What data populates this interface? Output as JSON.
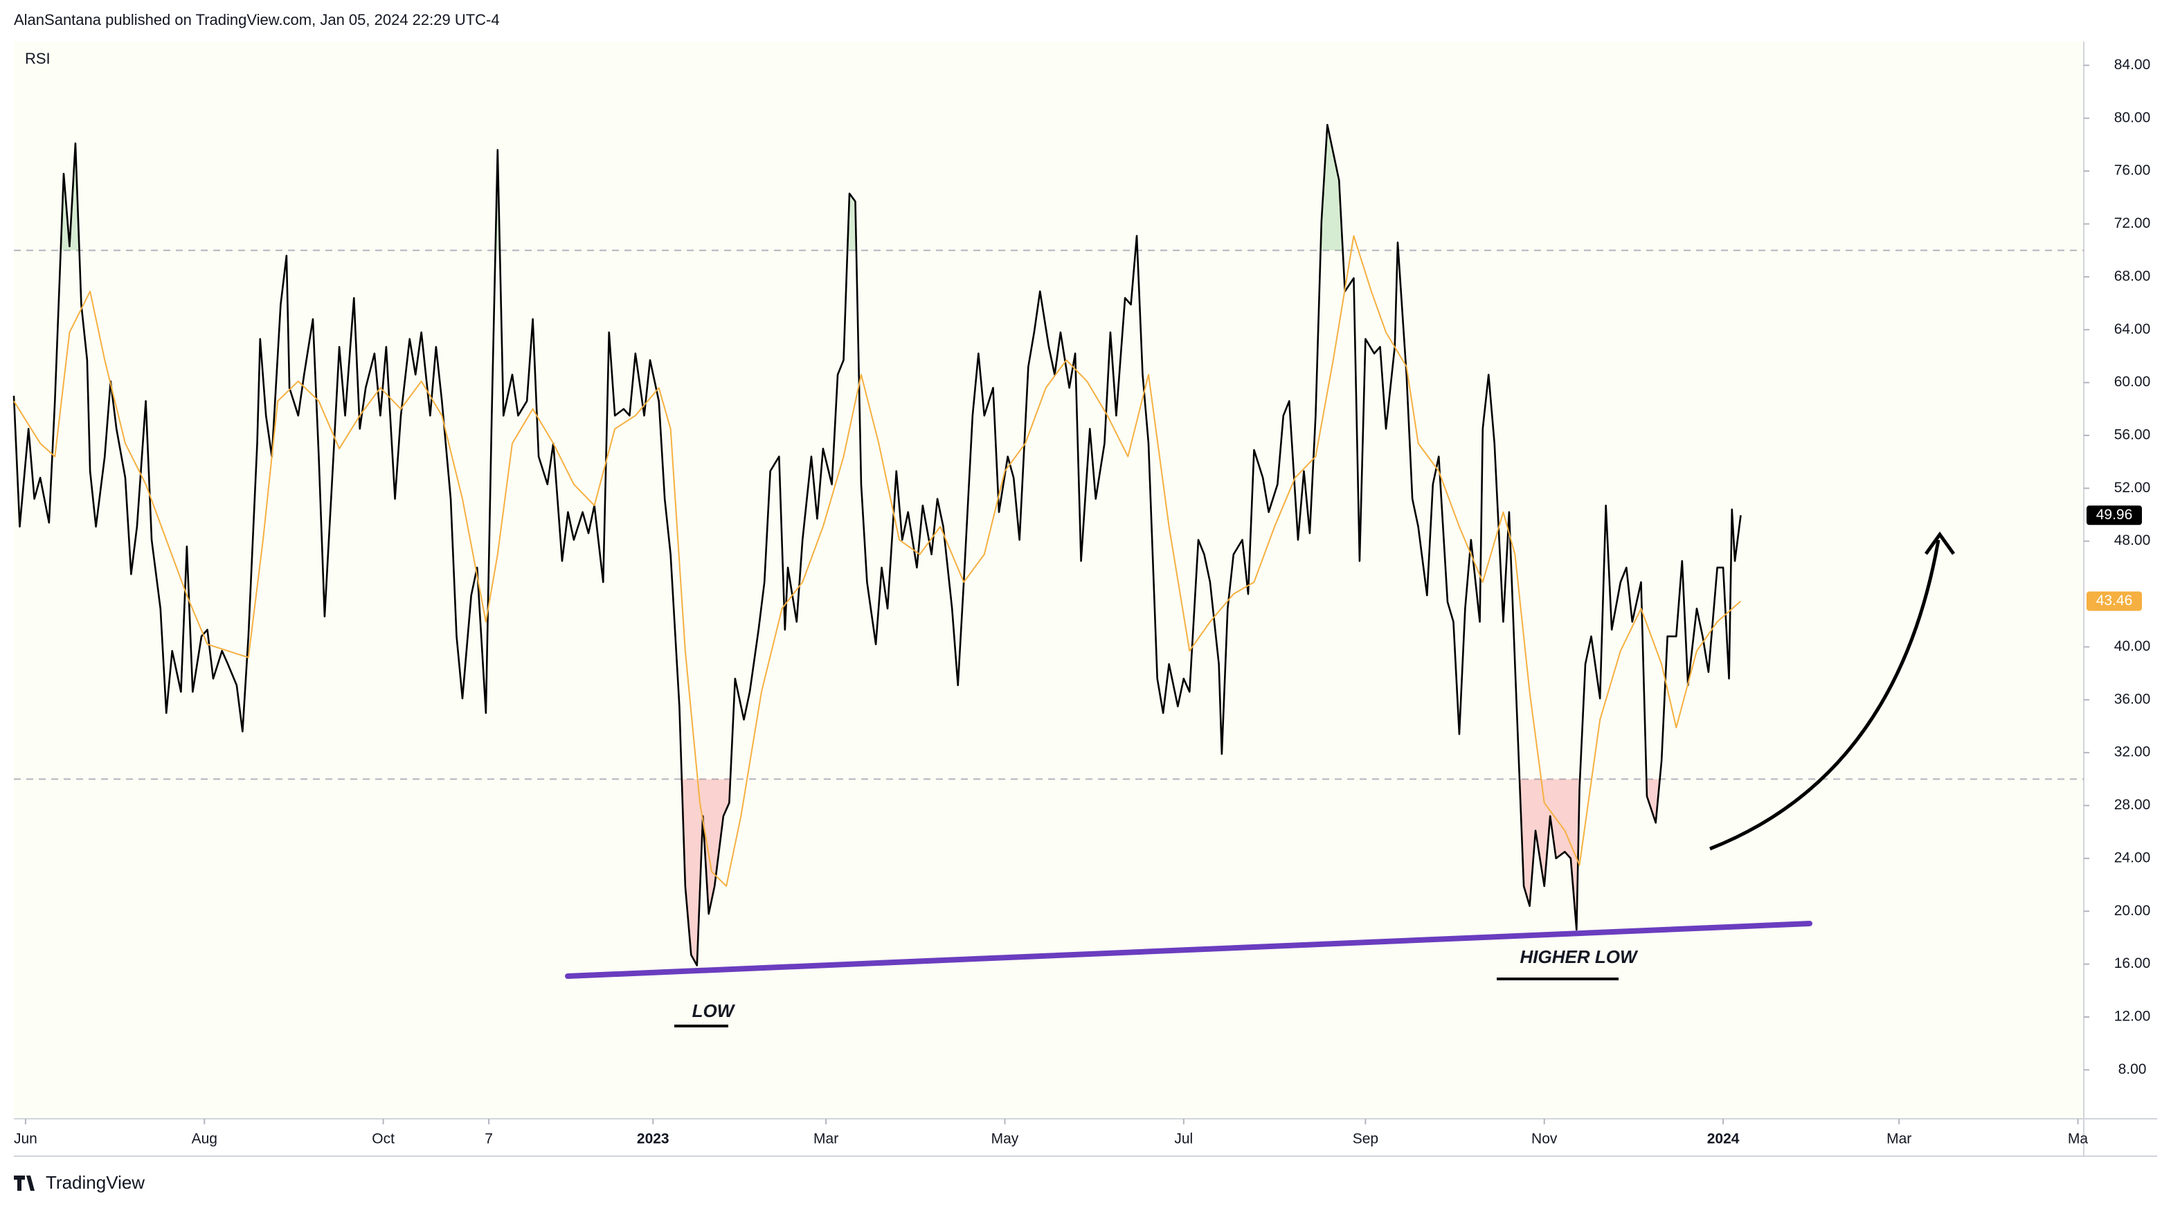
{
  "header": "AlanSantana published on TradingView.com, Jan 05, 2024 22:29 UTC-4",
  "footer": "TradingView",
  "chart_data": {
    "type": "line",
    "xlim": [
      -4,
      702
    ],
    "xticks": [
      {
        "value": 0,
        "label": "Jun"
      },
      {
        "value": 61,
        "label": "Aug"
      },
      {
        "value": 122,
        "label": "Oct"
      },
      {
        "value": 158,
        "label": "7"
      },
      {
        "value": 214,
        "label": "2023"
      },
      {
        "value": 273,
        "label": "Mar"
      },
      {
        "value": 334,
        "label": "May"
      },
      {
        "value": 395,
        "label": "Jul"
      },
      {
        "value": 457,
        "label": "Sep"
      },
      {
        "value": 518,
        "label": "Nov"
      },
      {
        "value": 579,
        "label": "2024"
      },
      {
        "value": 639,
        "label": "Mar"
      },
      {
        "value": 700,
        "label": "Ma"
      }
    ],
    "ylim": [
      4.3,
      85.8
    ],
    "yticks": [
      {
        "value": 8,
        "label": "8.00"
      },
      {
        "value": 12,
        "label": "12.00"
      },
      {
        "value": 16,
        "label": "16.00"
      },
      {
        "value": 20,
        "label": "20.00"
      },
      {
        "value": 24,
        "label": "24.00"
      },
      {
        "value": 28,
        "label": "28.00"
      },
      {
        "value": 32,
        "label": "32.00"
      },
      {
        "value": 36,
        "label": "36.00"
      },
      {
        "value": 40,
        "label": "40.00"
      },
      {
        "value": 48,
        "label": "48.00"
      },
      {
        "value": 52,
        "label": "52.00"
      },
      {
        "value": 56,
        "label": "56.00"
      },
      {
        "value": 60,
        "label": "60.00"
      },
      {
        "value": 64,
        "label": "64.00"
      },
      {
        "value": 68,
        "label": "68.00"
      },
      {
        "value": 72,
        "label": "72.00"
      },
      {
        "value": 76,
        "label": "76.00"
      },
      {
        "value": 80,
        "label": "80.00"
      },
      {
        "value": 84,
        "label": "84.00"
      }
    ],
    "hlines": [
      70,
      30
    ],
    "annotations": [
      "LOW",
      "HIGHER LOW"
    ],
    "series": [
      {
        "name": "RSI",
        "color": "#000000",
        "x": [
          -4,
          -2,
          1,
          3,
          5,
          8,
          10,
          13,
          15,
          17,
          19,
          21,
          22,
          24,
          27,
          29,
          31,
          34,
          36,
          38,
          41,
          43,
          46,
          48,
          50,
          53,
          55,
          57,
          60,
          62,
          64,
          67,
          69,
          72,
          74,
          76,
          79,
          80,
          82,
          84,
          87,
          89,
          90,
          93,
          95,
          98,
          100,
          102,
          105,
          107,
          109,
          112,
          114,
          116,
          119,
          121,
          123,
          126,
          128,
          131,
          133,
          135,
          138,
          140,
          142,
          145,
          147,
          149,
          152,
          154,
          157,
          159,
          161,
          163,
          166,
          168,
          171,
          173,
          175,
          178,
          180,
          183,
          185,
          187,
          190,
          192,
          194,
          197,
          199,
          201,
          204,
          206,
          208,
          211,
          213,
          216,
          218,
          220,
          223,
          225,
          227,
          229,
          231,
          233,
          235,
          238,
          240,
          242,
          245,
          247,
          250,
          252,
          254,
          257,
          259,
          260,
          263,
          265,
          268,
          270,
          272,
          275,
          277,
          279,
          281,
          283,
          285,
          287,
          290,
          292,
          294,
          297,
          299,
          301,
          304,
          306,
          309,
          311,
          313,
          316,
          318,
          320,
          323,
          325,
          327,
          330,
          332,
          335,
          337,
          339,
          342,
          344,
          346,
          349,
          351,
          353,
          356,
          358,
          360,
          363,
          365,
          368,
          370,
          372,
          375,
          377,
          379,
          381,
          383,
          386,
          388,
          390,
          393,
          395,
          397,
          400,
          402,
          404,
          407,
          408,
          410,
          412,
          415,
          417,
          419,
          422,
          424,
          427,
          429,
          431,
          434,
          436,
          438,
          440,
          442,
          444,
          446,
          448,
          450,
          453,
          455,
          457,
          460,
          462,
          464,
          467,
          468,
          471,
          473,
          475,
          478,
          480,
          482,
          485,
          487,
          489,
          491,
          493,
          496,
          497,
          499,
          501,
          504,
          506,
          508,
          511,
          513,
          515,
          518,
          520,
          522,
          525,
          527,
          529,
          530,
          532,
          534,
          537,
          539,
          541,
          544,
          546,
          548,
          551,
          553,
          556,
          558,
          560,
          563,
          565,
          567,
          570,
          572,
          574,
          577,
          579,
          581,
          582,
          583,
          585
        ],
        "values": [
          59,
          49.1,
          56.5,
          51.2,
          52.8,
          49.4,
          58.6,
          75.8,
          70.3,
          78.1,
          65.9,
          61.7,
          53.3,
          49.1,
          54.4,
          60.1,
          56.5,
          52.8,
          45.5,
          49.1,
          58.6,
          48.1,
          42.9,
          35,
          39.7,
          36.6,
          47.6,
          36.6,
          40.8,
          41.3,
          37.6,
          39.7,
          38.7,
          37.1,
          33.6,
          40.8,
          55.4,
          63.3,
          57.5,
          54.4,
          65.9,
          69.6,
          59.6,
          57.5,
          60.6,
          64.8,
          54.4,
          42.3,
          54.4,
          62.7,
          57.5,
          66.4,
          56.5,
          59.6,
          62.2,
          57.5,
          62.7,
          51.2,
          57.5,
          63.3,
          60.6,
          63.8,
          57.5,
          62.7,
          58.6,
          51.2,
          40.8,
          36.1,
          43.9,
          46,
          35,
          57.5,
          77.6,
          57.5,
          60.6,
          57.5,
          58.6,
          64.8,
          54.4,
          52.3,
          55.4,
          46.5,
          50.2,
          48.1,
          50.2,
          48.6,
          50.7,
          44.9,
          63.8,
          57.5,
          58,
          57.5,
          62.2,
          57.5,
          61.7,
          58.6,
          51.2,
          47,
          35.5,
          21.9,
          16.7,
          15.9,
          27.2,
          19.8,
          21.9,
          27.2,
          28.2,
          37.6,
          34.5,
          36.6,
          41.3,
          44.9,
          53.3,
          54.4,
          41.3,
          46,
          41.9,
          48.1,
          54.4,
          49.7,
          55,
          52.3,
          60.6,
          61.7,
          74.3,
          73.7,
          52.3,
          44.9,
          40.2,
          46,
          42.9,
          53.3,
          48.1,
          50.2,
          46,
          50.7,
          47,
          51.2,
          49.1,
          42.9,
          37.1,
          44.9,
          57.5,
          62.2,
          57.5,
          59.6,
          50.2,
          54.4,
          52.8,
          48.1,
          61.2,
          63.8,
          66.9,
          62.7,
          60.6,
          63.8,
          59.6,
          62.2,
          46.5,
          56.5,
          51.2,
          55.4,
          63.8,
          57.5,
          66.4,
          65.9,
          71.1,
          60.6,
          55.4,
          37.6,
          35,
          38.7,
          35.5,
          37.6,
          36.6,
          48.1,
          47,
          44.9,
          38.7,
          31.9,
          42.9,
          47,
          48.1,
          44,
          54.9,
          52.8,
          50.2,
          52.3,
          57.5,
          58.6,
          48.1,
          53.3,
          48.6,
          57.5,
          72.2,
          79.5,
          77.4,
          75.3,
          66.9,
          67.9,
          46.5,
          63.3,
          62.2,
          62.7,
          56.5,
          62.7,
          70.6,
          60.6,
          51.2,
          49.1,
          43.9,
          52.3,
          54.4,
          43.4,
          41.9,
          33.4,
          42.9,
          48.1,
          41.9,
          56.5,
          60.6,
          55.4,
          41.9,
          50.2,
          38.7,
          21.9,
          20.4,
          26.1,
          21.9,
          27.2,
          24,
          24.5,
          24,
          18.6,
          29.3,
          38.7,
          40.8,
          36.1,
          50.7,
          41.3,
          44.9,
          46,
          41.9,
          44.9,
          28.7,
          26.7,
          31.4,
          40.8,
          40.8,
          46.5,
          37.1,
          42.9,
          40.8,
          38.1,
          46,
          46,
          37.6,
          50.4,
          46.5,
          49.96
        ]
      },
      {
        "color": "#f5b041",
        "x": [
          -4,
          5,
          10,
          15,
          22,
          27,
          34,
          41,
          48,
          55,
          62,
          69,
          76,
          81,
          86,
          93,
          100,
          107,
          114,
          121,
          128,
          135,
          142,
          149,
          157,
          161,
          166,
          173,
          180,
          187,
          194,
          201,
          208,
          216,
          220,
          225,
          230,
          234,
          239,
          244,
          251,
          258,
          265,
          272,
          279,
          285,
          291,
          298,
          305,
          312,
          320,
          327,
          334,
          341,
          348,
          355,
          362,
          369,
          376,
          383,
          390,
          397,
          404,
          412,
          419,
          426,
          433,
          440,
          446,
          453,
          459,
          464,
          471,
          475,
          482,
          489,
          497,
          504,
          508,
          513,
          518,
          525,
          530,
          537,
          544,
          551,
          558,
          563,
          570,
          577,
          585
        ],
        "values": [
          58.6,
          55.4,
          54.4,
          63.8,
          66.9,
          61.7,
          55.4,
          52.3,
          48.1,
          43.9,
          40.2,
          39.7,
          39.2,
          48.1,
          58.6,
          60.1,
          58.6,
          55,
          57.5,
          59.6,
          58,
          60.1,
          57.5,
          51.2,
          41.9,
          47,
          55.4,
          58,
          55.4,
          52.3,
          50.7,
          56.5,
          57.5,
          59.6,
          56.5,
          39.7,
          28.2,
          23,
          21.9,
          27.2,
          36.6,
          42.9,
          44.9,
          49.1,
          54.4,
          60.6,
          55.4,
          48.1,
          47,
          49.1,
          44.9,
          47,
          53.3,
          55.4,
          59.6,
          61.7,
          60.1,
          57.5,
          54.4,
          60.6,
          49.1,
          39.7,
          41.9,
          44,
          44.9,
          49.1,
          52.8,
          54.4,
          61.7,
          71.1,
          66.9,
          63.8,
          61.2,
          55.4,
          53.3,
          49.1,
          44.9,
          50.2,
          47,
          36.6,
          28.2,
          26.1,
          23.5,
          34.5,
          39.7,
          42.9,
          38.7,
          33.9,
          39.7,
          41.9,
          43.46
        ]
      }
    ]
  }
}
